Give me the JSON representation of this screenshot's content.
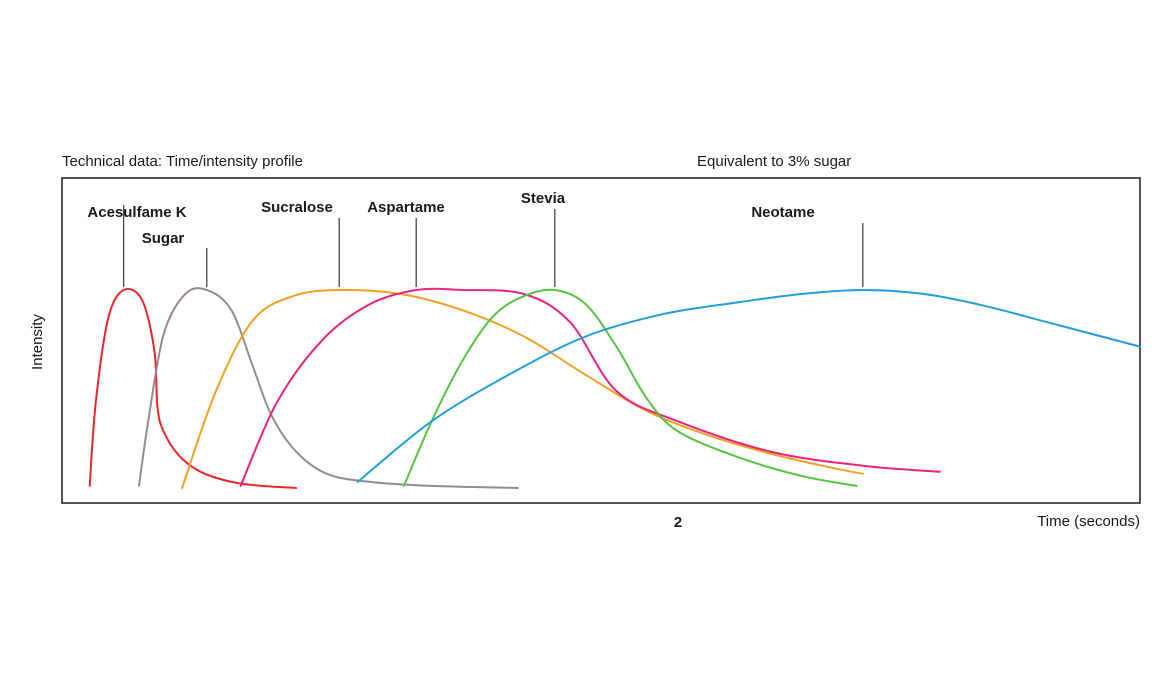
{
  "chart_data": {
    "type": "line",
    "title": "Technical data: Time/intensity profile",
    "subtitle": "Equivalent to 3% sugar",
    "xlabel": "Time (seconds)",
    "ylabel": "Intensity",
    "x_ticks": [
      2
    ],
    "xlim": [
      0,
      3.5
    ],
    "ylim": [
      0,
      1
    ],
    "grid": false,
    "series": [
      {
        "name": "Acesulfame K",
        "color": "#e8262a",
        "x": [
          0.09,
          0.11,
          0.15,
          0.2,
          0.26,
          0.3,
          0.31,
          0.33,
          0.38,
          0.45,
          0.55,
          0.65,
          0.76
        ],
        "y": [
          0.03,
          0.45,
          0.86,
          1.0,
          0.95,
          0.7,
          0.42,
          0.3,
          0.18,
          0.1,
          0.05,
          0.03,
          0.02
        ]
      },
      {
        "name": "Sugar",
        "color": "#948a94",
        "x": [
          0.25,
          0.28,
          0.33,
          0.4,
          0.47,
          0.55,
          0.62,
          0.68,
          0.76,
          0.86,
          1.0,
          1.2,
          1.48
        ],
        "y": [
          0.03,
          0.35,
          0.78,
          0.98,
          1.0,
          0.9,
          0.62,
          0.38,
          0.2,
          0.09,
          0.05,
          0.03,
          0.02
        ]
      },
      {
        "name": "Sucralose",
        "color": "#f4a020",
        "x": [
          0.39,
          0.5,
          0.62,
          0.75,
          0.9,
          1.1,
          1.3,
          1.5,
          1.7,
          1.9,
          2.1,
          2.3,
          2.5,
          2.6
        ],
        "y": [
          0.02,
          0.5,
          0.85,
          0.97,
          1.0,
          0.98,
          0.9,
          0.77,
          0.58,
          0.4,
          0.28,
          0.19,
          0.12,
          0.09
        ]
      },
      {
        "name": "Aspartame",
        "color": "#e9237e",
        "x": [
          0.58,
          0.7,
          0.85,
          1.0,
          1.15,
          1.3,
          1.5,
          1.65,
          1.8,
          2.0,
          2.3,
          2.6,
          2.85
        ],
        "y": [
          0.03,
          0.45,
          0.76,
          0.93,
          1.0,
          1.0,
          0.98,
          0.84,
          0.5,
          0.35,
          0.2,
          0.13,
          0.1
        ]
      },
      {
        "name": "Stevia",
        "color": "#55c43e",
        "x": [
          1.11,
          1.2,
          1.3,
          1.4,
          1.5,
          1.6,
          1.7,
          1.8,
          1.9,
          2.0,
          2.2,
          2.4,
          2.58
        ],
        "y": [
          0.03,
          0.35,
          0.65,
          0.87,
          0.97,
          1.0,
          0.93,
          0.72,
          0.46,
          0.3,
          0.17,
          0.08,
          0.03
        ]
      },
      {
        "name": "Neotame",
        "color": "#1ea0df",
        "x": [
          0.96,
          1.2,
          1.45,
          1.7,
          1.95,
          2.2,
          2.4,
          2.6,
          2.8,
          3.0,
          3.2,
          3.4,
          3.5
        ],
        "y": [
          0.05,
          0.35,
          0.58,
          0.77,
          0.88,
          0.94,
          0.98,
          1.0,
          0.98,
          0.92,
          0.84,
          0.76,
          0.72
        ]
      }
    ]
  }
}
